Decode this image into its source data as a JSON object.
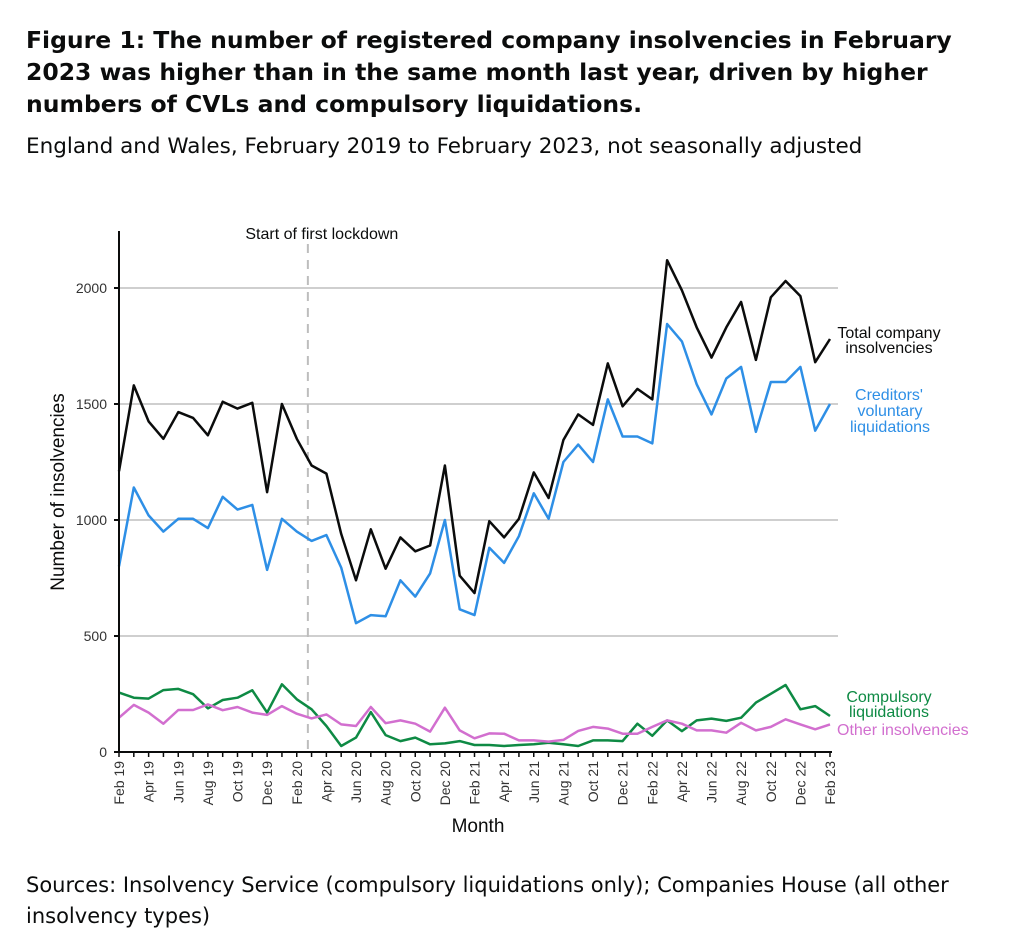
{
  "title": "Figure 1: The number of registered company insolvencies in February 2023 was higher than in the same month last year, driven by higher numbers of CVLs and compulsory liquidations.",
  "subtitle": "England and Wales, February 2019 to February 2023, not seasonally adjusted",
  "source": "Sources: Insolvency Service (compulsory liquidations only); Companies House (all other insolvency types)",
  "chart_data": {
    "type": "line",
    "xlabel": "Month",
    "ylabel": "Number of insolvencies",
    "ylim": [
      0,
      2240
    ],
    "yticks": [
      0,
      500,
      1000,
      1500,
      2000
    ],
    "grid": "horizontal",
    "legend": "direct labels at right",
    "annotation": {
      "text": "Start of first lockdown",
      "x": "Mar 20"
    },
    "x": [
      "Feb 19",
      "Mar 19",
      "Apr 19",
      "May 19",
      "Jun 19",
      "Jul 19",
      "Aug 19",
      "Sep 19",
      "Oct 19",
      "Nov 19",
      "Dec 19",
      "Jan 20",
      "Feb 20",
      "Mar 20",
      "Apr 20",
      "May 20",
      "Jun 20",
      "Jul 20",
      "Aug 20",
      "Sep 20",
      "Oct 20",
      "Nov 20",
      "Dec 20",
      "Jan 21",
      "Feb 21",
      "Mar 21",
      "Apr 21",
      "May 21",
      "Jun 21",
      "Jul 21",
      "Aug 21",
      "Sep 21",
      "Oct 21",
      "Nov 21",
      "Dec 21",
      "Jan 22",
      "Feb 22",
      "Mar 22",
      "Apr 22",
      "May 22",
      "Jun 22",
      "Jul 22",
      "Aug 22",
      "Sep 22",
      "Oct 22",
      "Nov 22",
      "Dec 22",
      "Jan 23",
      "Feb 23"
    ],
    "xtick_labels": [
      "Feb 19",
      "Apr 19",
      "Jun 19",
      "Aug 19",
      "Oct 19",
      "Dec 19",
      "Feb 20",
      "Apr 20",
      "Jun 20",
      "Aug 20",
      "Oct 20",
      "Dec 20",
      "Feb 21",
      "Apr 21",
      "Jun 21",
      "Aug 21",
      "Oct 21",
      "Dec 21",
      "Feb 22",
      "Apr 22",
      "Jun 22",
      "Aug 22",
      "Oct 22",
      "Dec 22",
      "Feb 23"
    ],
    "series": [
      {
        "name": "Total company insolvencies",
        "label_lines": [
          "Total company",
          "insolvencies"
        ],
        "color": "#0b0c0c",
        "values": [
          1210,
          1580,
          1425,
          1350,
          1465,
          1440,
          1365,
          1510,
          1480,
          1505,
          1120,
          1500,
          1350,
          1235,
          1200,
          940,
          740,
          960,
          790,
          925,
          865,
          890,
          1235,
          760,
          685,
          995,
          925,
          1005,
          1205,
          1095,
          1345,
          1455,
          1410,
          1675,
          1490,
          1565,
          1520,
          2120,
          1990,
          1830,
          1700,
          1830,
          1940,
          1690,
          1960,
          2030,
          1965,
          1680,
          1780
        ]
      },
      {
        "name": "Creditors' voluntary liquidations",
        "label_lines": [
          "Creditors'",
          "voluntary",
          "liquidations"
        ],
        "color": "#2e8fe6",
        "values": [
          800,
          1140,
          1020,
          950,
          1005,
          1005,
          965,
          1100,
          1045,
          1065,
          785,
          1005,
          950,
          910,
          935,
          795,
          555,
          590,
          585,
          740,
          670,
          770,
          1000,
          615,
          590,
          880,
          815,
          930,
          1115,
          1005,
          1250,
          1325,
          1250,
          1520,
          1360,
          1360,
          1330,
          1845,
          1770,
          1585,
          1455,
          1610,
          1660,
          1380,
          1595,
          1595,
          1660,
          1385,
          1500
        ]
      },
      {
        "name": "Compulsory liquidations",
        "label_lines": [
          "Compulsory",
          "liquidations"
        ],
        "color": "#0e8a44",
        "values": [
          256,
          234,
          230,
          267,
          272,
          249,
          188,
          224,
          234,
          266,
          170,
          292,
          227,
          184,
          112,
          26,
          62,
          172,
          73,
          47,
          62,
          33,
          37,
          47,
          30,
          30,
          26,
          30,
          33,
          40,
          33,
          26,
          50,
          50,
          47,
          122,
          70,
          136,
          90,
          136,
          144,
          134,
          148,
          213,
          251,
          289,
          184,
          198,
          155
        ]
      },
      {
        "name": "Other insolvencies",
        "label_lines": [
          "Other insolvencies"
        ],
        "color": "#d26fcf",
        "values": [
          148,
          203,
          170,
          122,
          181,
          181,
          205,
          180,
          194,
          170,
          160,
          198,
          165,
          145,
          162,
          119,
          112,
          194,
          124,
          136,
          122,
          88,
          191,
          93,
          59,
          80,
          79,
          50,
          50,
          45,
          52,
          91,
          108,
          101,
          79,
          79,
          108,
          136,
          122,
          93,
          93,
          83,
          126,
          93,
          108,
          141,
          119,
          98,
          119
        ]
      }
    ]
  }
}
